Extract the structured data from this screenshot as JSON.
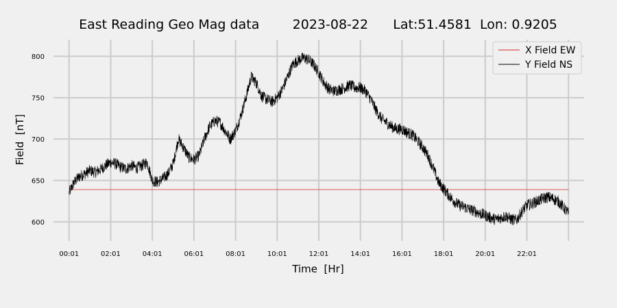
{
  "chart_data": {
    "type": "line",
    "title": "East Reading Geo Mag data        2023-08-22      Lat:51.4581  Lon: 0.9205",
    "xlabel": "Time  [Hr]",
    "ylabel": "Field  [nT]",
    "x_unit": "hours",
    "xlim": [
      -0.75,
      24.75
    ],
    "ylim": [
      577,
      820
    ],
    "x_ticks": [
      0,
      2,
      4,
      6,
      8,
      10,
      12,
      14,
      16,
      18,
      20,
      22,
      24
    ],
    "x_tick_labels": [
      "00:01",
      "02:01",
      "04:01",
      "06:01",
      "08:01",
      "10:01",
      "12:01",
      "14:01",
      "16:01",
      "18:01",
      "20:01",
      "22:01",
      ""
    ],
    "y_ticks": [
      600,
      650,
      700,
      750,
      800
    ],
    "grid": true,
    "legend_position": "top-right",
    "series": [
      {
        "name": "X Field EW",
        "color": "#d62728",
        "x": [
          0,
          24
        ],
        "values": [
          639,
          639
        ]
      },
      {
        "name": "Y Field NS",
        "color": "#000000",
        "x": [
          0,
          0.25,
          0.5,
          0.75,
          1,
          1.25,
          1.5,
          1.75,
          2,
          2.25,
          2.5,
          2.75,
          3,
          3.25,
          3.5,
          3.75,
          4,
          4.25,
          4.5,
          4.75,
          5,
          5.25,
          5.5,
          5.75,
          6,
          6.25,
          6.5,
          6.75,
          7,
          7.25,
          7.5,
          7.75,
          8,
          8.25,
          8.5,
          8.75,
          9,
          9.25,
          9.5,
          9.75,
          10,
          10.25,
          10.5,
          10.75,
          11,
          11.25,
          11.5,
          11.75,
          12,
          12.25,
          12.5,
          12.75,
          13,
          13.25,
          13.5,
          13.75,
          14,
          14.25,
          14.5,
          14.75,
          15,
          15.25,
          15.5,
          15.75,
          16,
          16.25,
          16.5,
          16.75,
          17,
          17.25,
          17.5,
          17.75,
          18,
          18.25,
          18.5,
          18.75,
          19,
          19.25,
          19.5,
          19.75,
          20,
          20.25,
          20.5,
          20.75,
          21,
          21.25,
          21.5,
          21.75,
          22,
          22.25,
          22.5,
          22.75,
          23,
          23.25,
          23.5,
          23.75,
          24
        ],
        "values": [
          635,
          648,
          655,
          658,
          662,
          660,
          663,
          668,
          672,
          670,
          666,
          664,
          668,
          665,
          668,
          672,
          650,
          648,
          652,
          658,
          670,
          700,
          690,
          678,
          675,
          680,
          700,
          715,
          722,
          720,
          710,
          700,
          710,
          728,
          750,
          775,
          768,
          752,
          748,
          745,
          750,
          760,
          775,
          790,
          795,
          798,
          796,
          790,
          780,
          768,
          760,
          758,
          760,
          762,
          765,
          762,
          762,
          758,
          748,
          735,
          725,
          720,
          715,
          712,
          712,
          708,
          705,
          698,
          690,
          680,
          665,
          648,
          640,
          632,
          625,
          620,
          618,
          615,
          613,
          610,
          608,
          605,
          603,
          605,
          607,
          603,
          602,
          612,
          620,
          622,
          625,
          628,
          630,
          628,
          625,
          618,
          610
        ]
      }
    ]
  }
}
